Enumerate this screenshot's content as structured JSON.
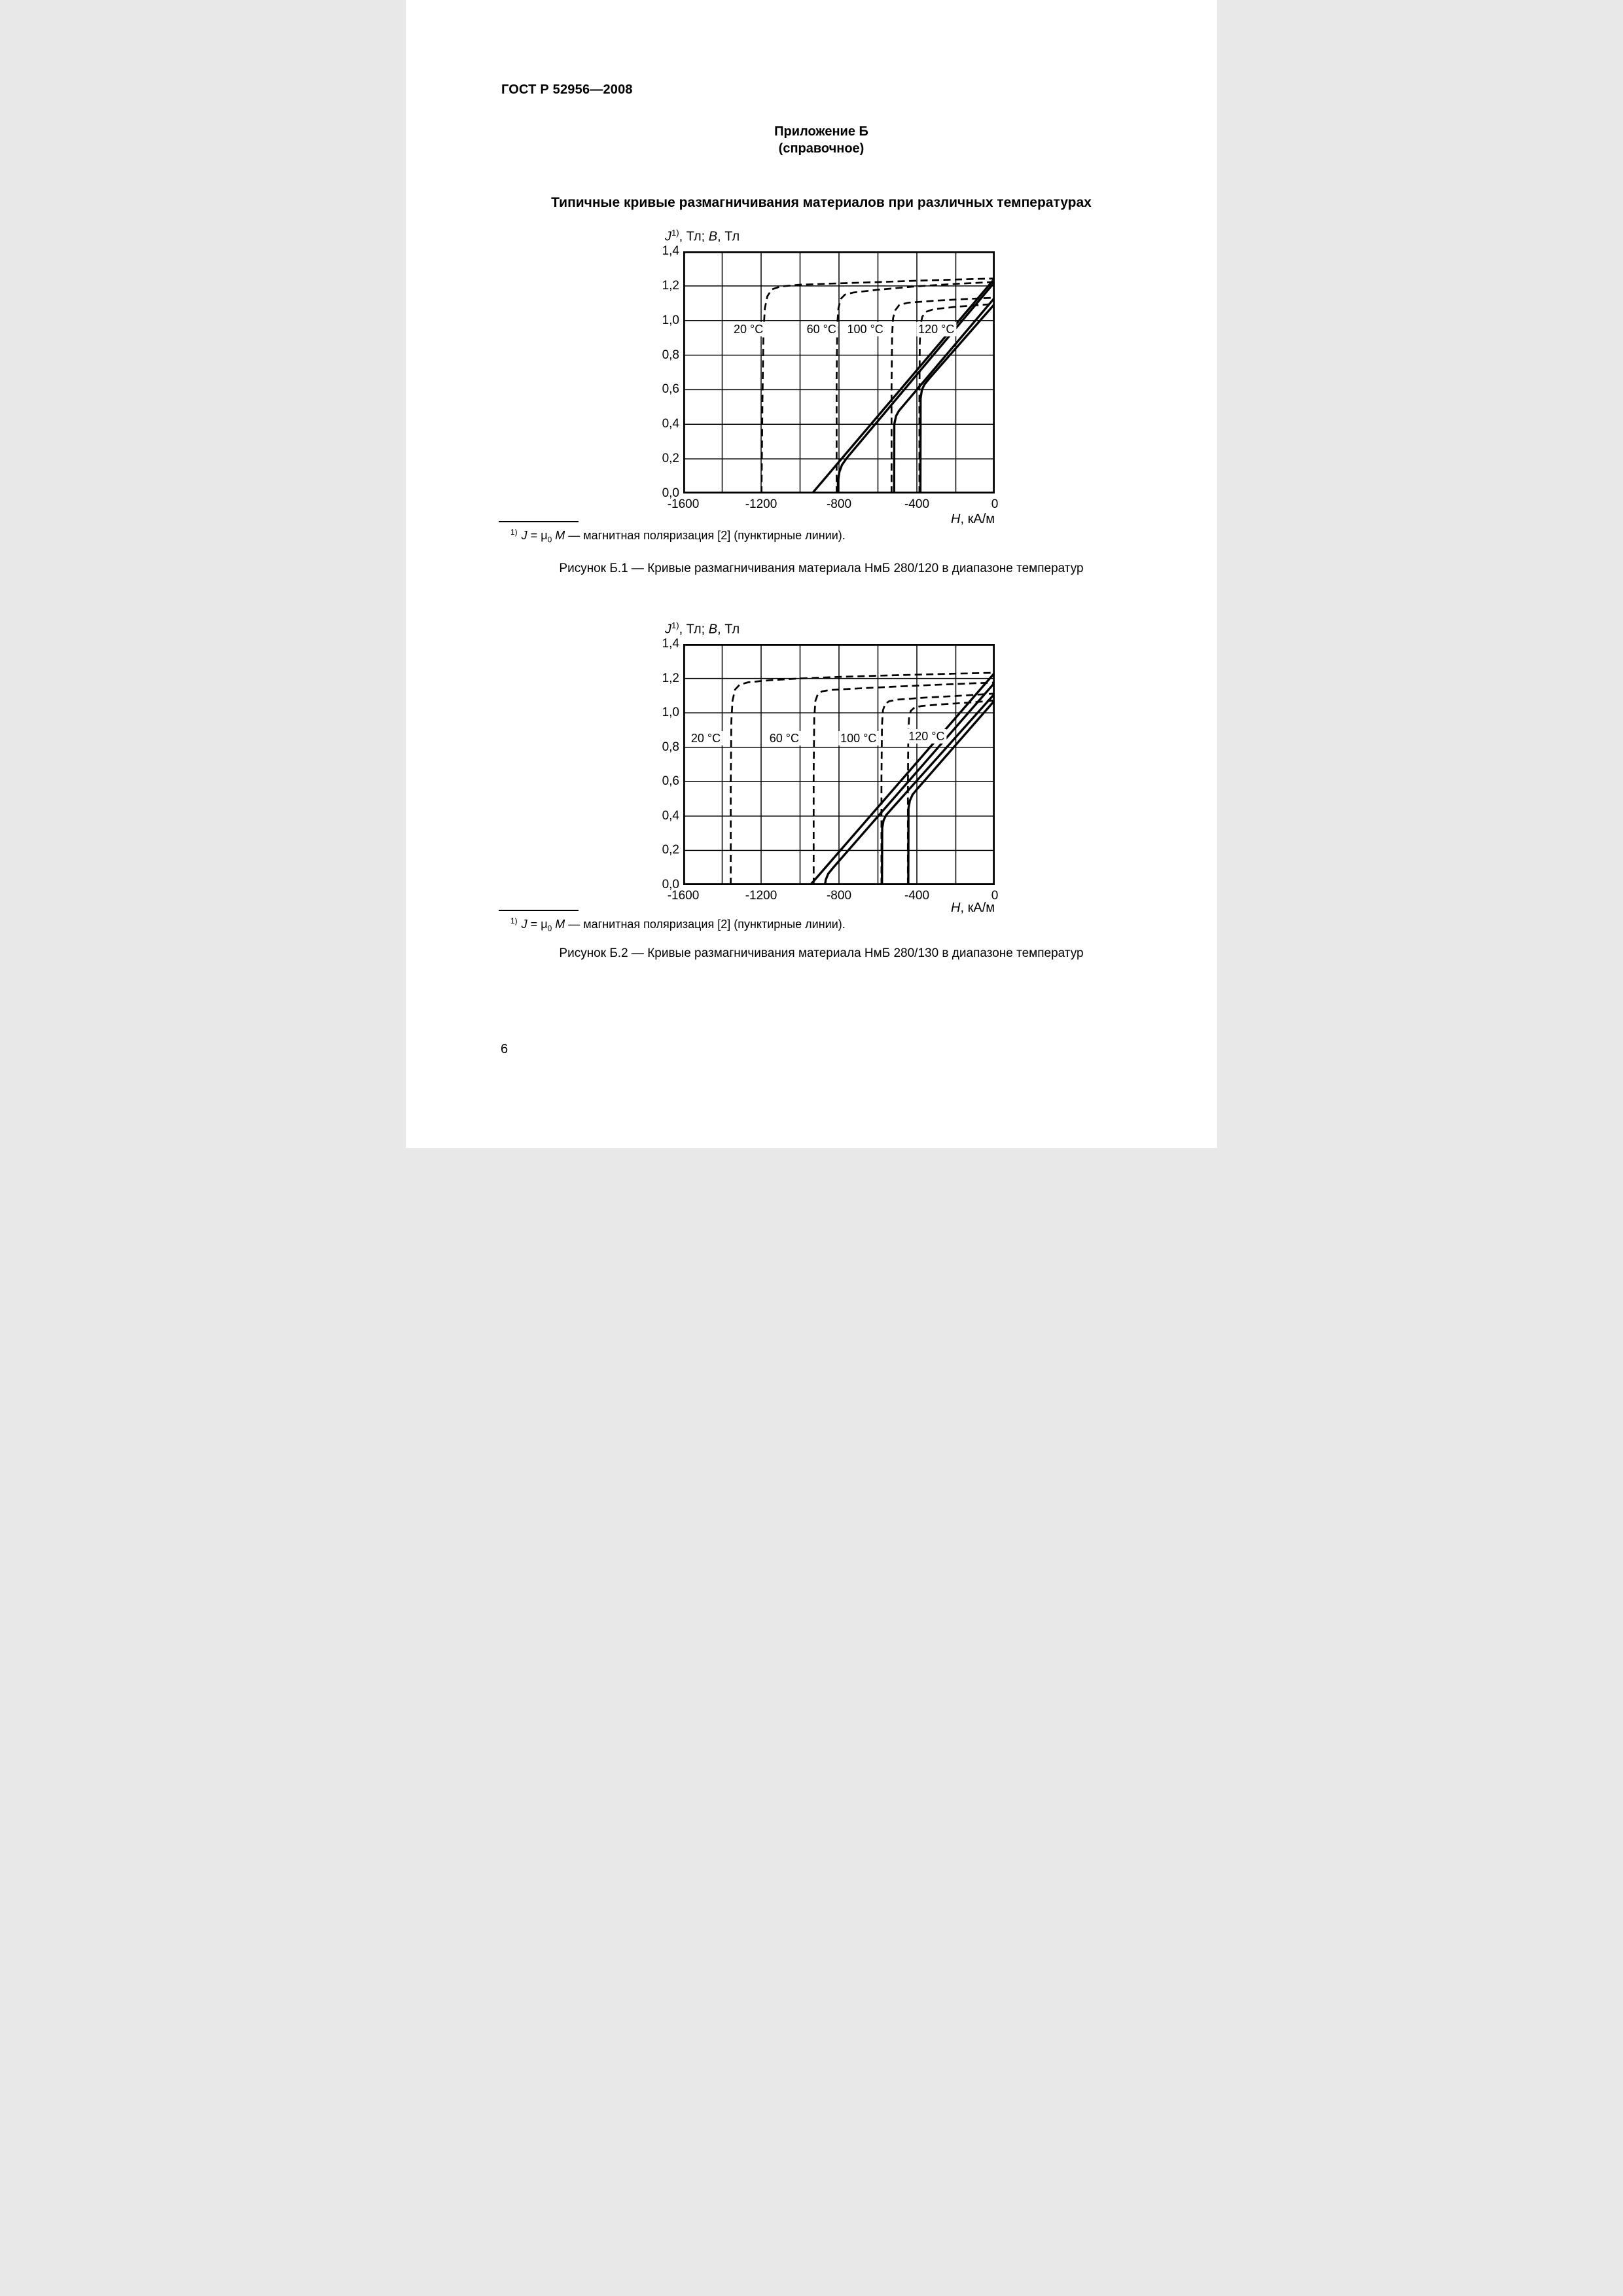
{
  "page": {
    "header": "ГОСТ Р 52956—2008",
    "appendix": {
      "title": "Приложение Б",
      "subtitle": "(справочное)"
    },
    "main_title": "Типичные кривые размагничивания материалов при различных температурах",
    "page_number": "6"
  },
  "y_axis_title": {
    "j": "J",
    "marker": "1)",
    "mid": ", Тл; ",
    "b": "B",
    "tail": ", Тл"
  },
  "x_axis_title": {
    "h": "H",
    "tail": ", кА/м"
  },
  "footnote": {
    "marker": "1)",
    "j": "J",
    "eq": " = ",
    "mu": "μ",
    "mu_sub": "0",
    "m": "М",
    "text": " — магнитная поляризация [2] (пунктирные линии)."
  },
  "chart_data": [
    {
      "type": "line",
      "title": "Рисунок Б.1 — Кривые размагничивания материала НмБ 280/120 в диапазоне температур",
      "material": "НмБ 280/120",
      "xlabel": "H, кА/м",
      "ylabel": "J, Тл; B, Тл",
      "xlim": [
        -1600,
        0
      ],
      "ylim": [
        0,
        1.4
      ],
      "grid": true,
      "grid_step_x": 200,
      "grid_step_y": 0.2,
      "x_ticks": [
        -1600,
        -1200,
        -800,
        -400,
        0
      ],
      "x_tick_labels": [
        "-1600",
        "-1200",
        "-800",
        "-400",
        "0"
      ],
      "y_ticks": [
        1.4,
        1.2,
        1.0,
        0.8,
        0.6,
        0.4,
        0.2,
        0.0
      ],
      "y_tick_labels": [
        "1,4",
        "1,2",
        "1,0",
        "0,8",
        "0,6",
        "0,4",
        "0,2",
        "0,0"
      ],
      "legend_note": "пунктирные линии — J, сплошные линии — B",
      "temperature_labels": [
        {
          "text": "20 °C",
          "h": -1265,
          "v": 0.945
        },
        {
          "text": "60 °C",
          "h": -890,
          "v": 0.945
        },
        {
          "text": "100 °C",
          "h": -665,
          "v": 0.945
        },
        {
          "text": "120 °C",
          "h": -300,
          "v": 0.945
        }
      ],
      "series": [
        {
          "id": "j-20c",
          "name": "J 20 °C",
          "style": "dashed",
          "points": [
            [
              -1198,
              0
            ],
            [
              -1193,
              0.55
            ],
            [
              -1188,
              0.93
            ],
            [
              -1181,
              1.07
            ],
            [
              -1168,
              1.14
            ],
            [
              -1145,
              1.18
            ],
            [
              -1100,
              1.197
            ],
            [
              -1000,
              1.207
            ],
            [
              -800,
              1.215
            ],
            [
              -600,
              1.222
            ],
            [
              -400,
              1.23
            ],
            [
              -200,
              1.237
            ],
            [
              0,
              1.243
            ]
          ]
        },
        {
          "id": "j-60c",
          "name": "J 60 °C",
          "style": "dashed",
          "points": [
            [
              -812,
              0
            ],
            [
              -812,
              0.65
            ],
            [
              -809,
              0.97
            ],
            [
              -803,
              1.07
            ],
            [
              -791,
              1.125
            ],
            [
              -769,
              1.15
            ],
            [
              -725,
              1.162
            ],
            [
              -600,
              1.178
            ],
            [
              -400,
              1.198
            ],
            [
              -200,
              1.212
            ],
            [
              0,
              1.223
            ]
          ]
        },
        {
          "id": "j-100c",
          "name": "J 100 °C",
          "style": "dashed",
          "points": [
            [
              -530,
              0
            ],
            [
              -530,
              0.62
            ],
            [
              -527,
              0.92
            ],
            [
              -522,
              1.015
            ],
            [
              -511,
              1.06
            ],
            [
              -490,
              1.09
            ],
            [
              -445,
              1.103
            ],
            [
              -300,
              1.115
            ],
            [
              -150,
              1.124
            ],
            [
              0,
              1.132
            ]
          ]
        },
        {
          "id": "j-120c",
          "name": "J 120 °C",
          "style": "dashed",
          "points": [
            [
              -387,
              0
            ],
            [
              -387,
              0.55
            ],
            [
              -385,
              0.87
            ],
            [
              -381,
              0.975
            ],
            [
              -372,
              1.022
            ],
            [
              -354,
              1.05
            ],
            [
              -315,
              1.065
            ],
            [
              -200,
              1.079
            ],
            [
              -100,
              1.088
            ],
            [
              0,
              1.096
            ]
          ]
        },
        {
          "id": "b-20c",
          "name": "B 20 °C",
          "style": "solid",
          "points": [
            [
              -938,
              0
            ],
            [
              0,
              1.243
            ]
          ]
        },
        {
          "id": "b-60c",
          "name": "B 60 °C",
          "style": "solid",
          "points": [
            [
              -806,
              0
            ],
            [
              -805,
              0.07
            ],
            [
              -798,
              0.125
            ],
            [
              -785,
              0.165
            ],
            [
              -760,
              0.205
            ],
            [
              0,
              1.223
            ]
          ]
        },
        {
          "id": "b-100c",
          "name": "B 100 °C",
          "style": "solid",
          "points": [
            [
              -517,
              0
            ],
            [
              -516,
              0.4
            ],
            [
              -507,
              0.448
            ],
            [
              -492,
              0.478
            ],
            [
              -468,
              0.51
            ],
            [
              0,
              1.132
            ]
          ]
        },
        {
          "id": "b-120c",
          "name": "B 120 °C",
          "style": "solid",
          "points": [
            [
              -382,
              0
            ],
            [
              -381,
              0.55
            ],
            [
              -374,
              0.6
            ],
            [
              -360,
              0.632
            ],
            [
              -338,
              0.662
            ],
            [
              0,
              1.096
            ]
          ]
        }
      ]
    },
    {
      "type": "line",
      "title": "Рисунок Б.2 — Кривые размагничивания материала НмБ 280/130 в диапазоне температур",
      "material": "НмБ 280/130",
      "xlabel": "H, кА/м",
      "ylabel": "J, Тл; B, Тл",
      "xlim": [
        -1600,
        0
      ],
      "ylim": [
        0,
        1.4
      ],
      "grid": true,
      "grid_step_x": 200,
      "grid_step_y": 0.2,
      "x_ticks": [
        -1600,
        -1200,
        -800,
        -400,
        0
      ],
      "x_tick_labels": [
        "-1600",
        "-1200",
        "-800",
        "-400",
        "0"
      ],
      "y_ticks": [
        1.4,
        1.2,
        1.0,
        0.8,
        0.6,
        0.4,
        0.2,
        0.0
      ],
      "y_tick_labels": [
        "1,4",
        "1,2",
        "1,0",
        "0,8",
        "0,6",
        "0,4",
        "0,2",
        "0,0"
      ],
      "legend_note": "пунктирные линии — J, сплошные линии — B",
      "temperature_labels": [
        {
          "text": "20 °C",
          "h": -1484,
          "v": 0.85
        },
        {
          "text": "60 °C",
          "h": -1081,
          "v": 0.85
        },
        {
          "text": "100 °C",
          "h": -700,
          "v": 0.85
        },
        {
          "text": "120 °C",
          "h": -350,
          "v": 0.86
        }
      ],
      "series": [
        {
          "id": "j-20c",
          "name": "J 20 °C",
          "style": "dashed",
          "points": [
            [
              -1356,
              0
            ],
            [
              -1356,
              0.6
            ],
            [
              -1353,
              0.95
            ],
            [
              -1347,
              1.07
            ],
            [
              -1334,
              1.135
            ],
            [
              -1311,
              1.163
            ],
            [
              -1266,
              1.178
            ],
            [
              -1150,
              1.19
            ],
            [
              -1000,
              1.2
            ],
            [
              -800,
              1.209
            ],
            [
              -600,
              1.216
            ],
            [
              -400,
              1.222
            ],
            [
              -200,
              1.228
            ],
            [
              0,
              1.233
            ]
          ]
        },
        {
          "id": "j-60c",
          "name": "J 60 °C",
          "style": "dashed",
          "points": [
            [
              -930,
              0
            ],
            [
              -930,
              0.65
            ],
            [
              -927,
              0.97
            ],
            [
              -921,
              1.07
            ],
            [
              -909,
              1.108
            ],
            [
              -887,
              1.125
            ],
            [
              -845,
              1.133
            ],
            [
              -700,
              1.142
            ],
            [
              -500,
              1.153
            ],
            [
              -300,
              1.163
            ],
            [
              -100,
              1.172
            ],
            [
              0,
              1.176
            ]
          ]
        },
        {
          "id": "j-100c",
          "name": "J 100 °C",
          "style": "dashed",
          "points": [
            [
              -582,
              0
            ],
            [
              -582,
              0.62
            ],
            [
              -579,
              0.93
            ],
            [
              -574,
              1.015
            ],
            [
              -563,
              1.052
            ],
            [
              -542,
              1.068
            ],
            [
              -498,
              1.077
            ],
            [
              -350,
              1.089
            ],
            [
              -200,
              1.098
            ],
            [
              0,
              1.112
            ]
          ]
        },
        {
          "id": "j-120c",
          "name": "J 120 °C",
          "style": "dashed",
          "points": [
            [
              -446,
              0
            ],
            [
              -446,
              0.55
            ],
            [
              -444,
              0.88
            ],
            [
              -440,
              0.975
            ],
            [
              -431,
              1.012
            ],
            [
              -413,
              1.03
            ],
            [
              -375,
              1.04
            ],
            [
              -250,
              1.051
            ],
            [
              -100,
              1.062
            ],
            [
              0,
              1.073
            ]
          ]
        },
        {
          "id": "b-20c",
          "name": "B 20 °C",
          "style": "solid",
          "points": [
            [
              -947,
              0
            ],
            [
              0,
              1.233
            ]
          ]
        },
        {
          "id": "b-60c",
          "name": "B 60 °C",
          "style": "solid",
          "points": [
            [
              -872,
              0
            ],
            [
              -868,
              0.03
            ],
            [
              -855,
              0.065
            ],
            [
              -830,
              0.1
            ],
            [
              0,
              1.176
            ]
          ]
        },
        {
          "id": "b-100c",
          "name": "B 100 °C",
          "style": "solid",
          "points": [
            [
              -579,
              0
            ],
            [
              -578,
              0.33
            ],
            [
              -571,
              0.375
            ],
            [
              -558,
              0.405
            ],
            [
              -535,
              0.435
            ],
            [
              0,
              1.112
            ]
          ]
        },
        {
          "id": "b-120c",
          "name": "B 120 °C",
          "style": "solid",
          "points": [
            [
              -444,
              0
            ],
            [
              -443,
              0.445
            ],
            [
              -436,
              0.49
            ],
            [
              -422,
              0.525
            ],
            [
              -400,
              0.555
            ],
            [
              0,
              1.073
            ]
          ]
        }
      ]
    }
  ],
  "style_colors": {
    "ink": "#000000",
    "paper": "#ffffff"
  }
}
